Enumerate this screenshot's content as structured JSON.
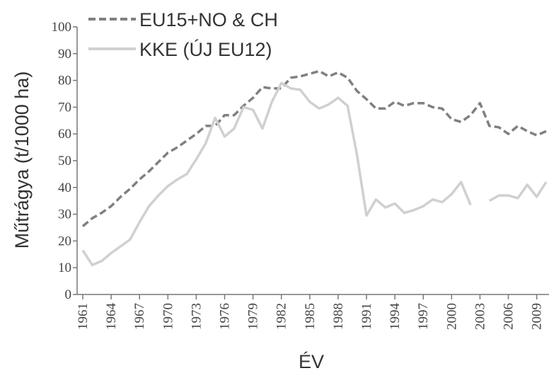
{
  "chart_data": {
    "type": "line",
    "x": [
      1961,
      1962,
      1963,
      1964,
      1965,
      1966,
      1967,
      1968,
      1969,
      1970,
      1971,
      1972,
      1973,
      1974,
      1975,
      1976,
      1977,
      1978,
      1979,
      1980,
      1981,
      1982,
      1983,
      1984,
      1985,
      1986,
      1987,
      1988,
      1989,
      1990,
      1991,
      1992,
      1993,
      1994,
      1995,
      1996,
      1997,
      1998,
      1999,
      2000,
      2001,
      2002,
      2003,
      2004,
      2005,
      2006,
      2007,
      2008,
      2009,
      2010
    ],
    "series": [
      {
        "name": "EU15+NO & CH",
        "color": "#808080",
        "dashed": true,
        "values": [
          25.5,
          28.5,
          30.5,
          33,
          36.5,
          39.5,
          43,
          46,
          49.5,
          53,
          55,
          57.5,
          60,
          63,
          63,
          67,
          67,
          70.5,
          73.5,
          77.5,
          77,
          77,
          81,
          81.5,
          82.5,
          83.5,
          81.5,
          83,
          81,
          76,
          73,
          69.5,
          69.5,
          72,
          70.5,
          71.5,
          71.5,
          70,
          69.5,
          65.5,
          64.5,
          67,
          71.5,
          63,
          62.5,
          60,
          63,
          61,
          59.5,
          61
        ]
      },
      {
        "name": "KKE (ÚJ EU12)",
        "color": "#d0d0d0",
        "dashed": false,
        "values": [
          16.5,
          11,
          12.5,
          15.5,
          18,
          20.5,
          27,
          33,
          37,
          40.5,
          43,
          45,
          50.5,
          56.5,
          66,
          59,
          62,
          70,
          69,
          62,
          72,
          79,
          77,
          76.5,
          72,
          69.5,
          71,
          73.5,
          70.5,
          52,
          29.5,
          35.5,
          32.5,
          34,
          30.5,
          31.5,
          33,
          35.5,
          34.5,
          37.5,
          42,
          33.5,
          null,
          35,
          37,
          37,
          36,
          41,
          36.5,
          42
        ]
      }
    ],
    "xlim": [
      1961,
      2010
    ],
    "xticks": [
      1961,
      1964,
      1967,
      1970,
      1973,
      1976,
      1979,
      1982,
      1985,
      1988,
      1991,
      1994,
      1997,
      2000,
      2003,
      2006,
      2009
    ],
    "ylim": [
      0,
      100
    ],
    "yticks": [
      0,
      10,
      20,
      30,
      40,
      50,
      60,
      70,
      80,
      90,
      100
    ],
    "xlabel": "ÉV",
    "ylabel": "Műtrágya (t/1000 ha)",
    "legend": "top-left"
  }
}
